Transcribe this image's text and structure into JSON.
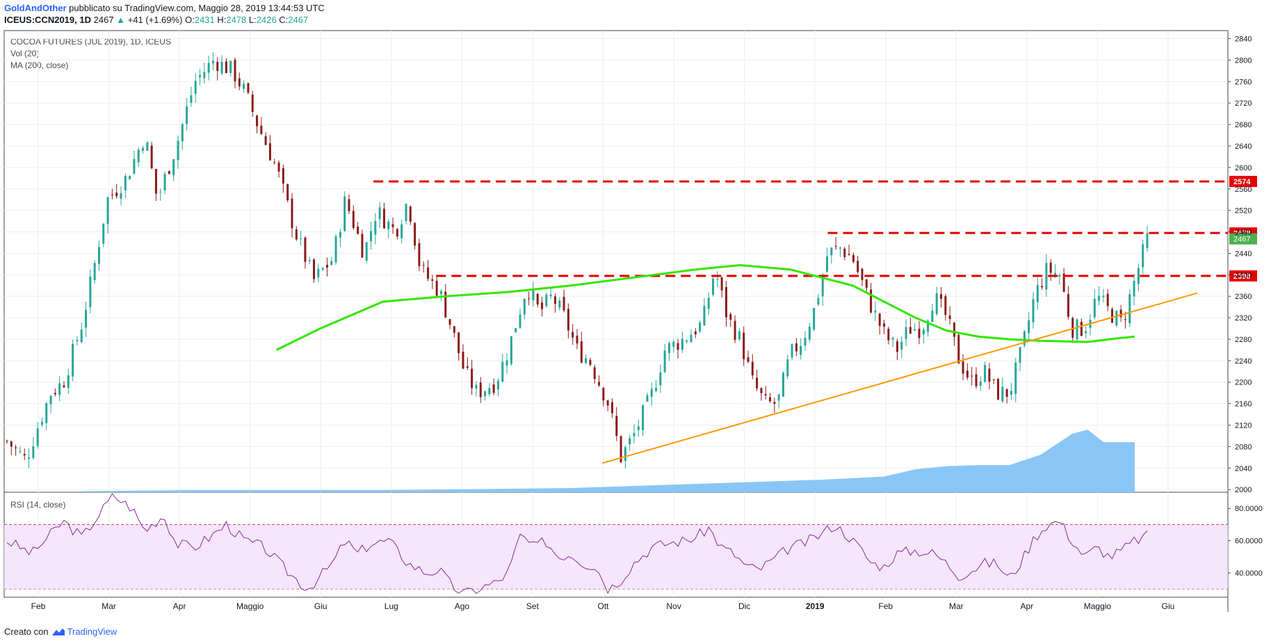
{
  "header": {
    "author": "GoldAndOther",
    "published_text": "pubblicato su TradingView.com, Maggio 28, 2019 13:44:53 UTC",
    "symbol": "ICEUS:CCN2019, 1D",
    "last": "2467",
    "change": "+41 (+1.69%)",
    "o_label": "O:",
    "o": "2431",
    "h_label": "H:",
    "h": "2478",
    "l_label": "L:",
    "l": "2426",
    "c_label": "C:",
    "c": "2467"
  },
  "legend": {
    "title": "COCOA FUTURES (JUL 2019), 1D, ICEUS",
    "vol": "Vol (20)",
    "ma": "MA (200, close)",
    "rsi": "RSI (14, close)"
  },
  "footer": {
    "created_with": "Creato con",
    "brand": "TradingView"
  },
  "colors": {
    "up": "#26a69a",
    "down": "#8b1a1a",
    "ma": "#33e600",
    "trend": "#ff9800",
    "level": "#e60000",
    "volume": "#8ac6f5",
    "rsi": "#8a2a9a"
  },
  "chart_data": [
    {
      "type": "candlestick",
      "title": "COCOA FUTURES (JUL 2019), 1D, ICEUS",
      "x_ticks": [
        "Feb",
        "Mar",
        "Apr",
        "Maggio",
        "Giu",
        "Lug",
        "Ago",
        "Set",
        "Ott",
        "Nov",
        "Dic",
        "2019",
        "Feb",
        "Mar",
        "Apr",
        "Maggio",
        "Giu"
      ],
      "y_ticks": [
        2000,
        2040,
        2080,
        2120,
        2160,
        2200,
        2240,
        2280,
        2320,
        2360,
        2400,
        2440,
        2480,
        2520,
        2560,
        2600,
        2640,
        2680,
        2720,
        2760,
        2800,
        2840
      ],
      "ylim": [
        1995,
        2855
      ],
      "price_path": [
        [
          0,
          2090
        ],
        [
          6,
          2055
        ],
        [
          10,
          2120
        ],
        [
          14,
          2180
        ],
        [
          18,
          2200
        ],
        [
          24,
          2310
        ],
        [
          28,
          2420
        ],
        [
          32,
          2540
        ],
        [
          38,
          2580
        ],
        [
          44,
          2660
        ],
        [
          48,
          2540
        ],
        [
          54,
          2640
        ],
        [
          60,
          2760
        ],
        [
          66,
          2800
        ],
        [
          72,
          2780
        ],
        [
          76,
          2740
        ],
        [
          80,
          2680
        ],
        [
          86,
          2600
        ],
        [
          92,
          2480
        ],
        [
          98,
          2390
        ],
        [
          104,
          2430
        ],
        [
          108,
          2540
        ],
        [
          114,
          2440
        ],
        [
          118,
          2520
        ],
        [
          124,
          2480
        ],
        [
          128,
          2540
        ],
        [
          132,
          2410
        ],
        [
          138,
          2370
        ],
        [
          142,
          2300
        ],
        [
          146,
          2220
        ],
        [
          150,
          2180
        ],
        [
          156,
          2200
        ],
        [
          160,
          2260
        ],
        [
          166,
          2380
        ],
        [
          170,
          2330
        ],
        [
          174,
          2360
        ],
        [
          178,
          2320
        ],
        [
          182,
          2260
        ],
        [
          186,
          2240
        ],
        [
          192,
          2160
        ],
        [
          196,
          2060
        ],
        [
          200,
          2100
        ],
        [
          206,
          2180
        ],
        [
          210,
          2260
        ],
        [
          216,
          2280
        ],
        [
          222,
          2310
        ],
        [
          226,
          2410
        ],
        [
          230,
          2320
        ],
        [
          234,
          2280
        ],
        [
          238,
          2200
        ],
        [
          242,
          2160
        ],
        [
          246,
          2160
        ],
        [
          250,
          2250
        ],
        [
          254,
          2280
        ],
        [
          258,
          2340
        ],
        [
          262,
          2440
        ],
        [
          266,
          2450
        ],
        [
          270,
          2430
        ],
        [
          276,
          2340
        ],
        [
          280,
          2290
        ],
        [
          284,
          2260
        ],
        [
          288,
          2300
        ],
        [
          292,
          2300
        ],
        [
          296,
          2360
        ],
        [
          300,
          2320
        ],
        [
          304,
          2240
        ],
        [
          308,
          2200
        ],
        [
          312,
          2220
        ],
        [
          316,
          2180
        ],
        [
          320,
          2180
        ],
        [
          324,
          2260
        ],
        [
          328,
          2360
        ],
        [
          332,
          2410
        ],
        [
          336,
          2400
        ],
        [
          340,
          2300
        ],
        [
          344,
          2300
        ],
        [
          348,
          2360
        ],
        [
          352,
          2330
        ],
        [
          356,
          2310
        ],
        [
          360,
          2390
        ],
        [
          364,
          2467
        ]
      ],
      "levels": [
        2574,
        2478,
        2398
      ],
      "level_labels": [
        "2574",
        "2478",
        "2398"
      ],
      "last_label": "2467",
      "ma200": [
        [
          86,
          2260
        ],
        [
          100,
          2300
        ],
        [
          120,
          2350
        ],
        [
          140,
          2360
        ],
        [
          160,
          2368
        ],
        [
          180,
          2380
        ],
        [
          200,
          2395
        ],
        [
          220,
          2410
        ],
        [
          234,
          2418
        ],
        [
          250,
          2410
        ],
        [
          260,
          2395
        ],
        [
          270,
          2380
        ],
        [
          280,
          2350
        ],
        [
          290,
          2320
        ],
        [
          300,
          2296
        ],
        [
          310,
          2285
        ],
        [
          320,
          2280
        ],
        [
          330,
          2277
        ],
        [
          345,
          2275
        ],
        [
          355,
          2282
        ],
        [
          360,
          2285
        ]
      ],
      "trendline": [
        [
          190,
          2049
        ],
        [
          380,
          2366
        ]
      ],
      "volume": [
        [
          24,
          0.01
        ],
        [
          60,
          0.02
        ],
        [
          120,
          0.02
        ],
        [
          180,
          0.04
        ],
        [
          220,
          0.08
        ],
        [
          260,
          0.12
        ],
        [
          280,
          0.15
        ],
        [
          290,
          0.22
        ],
        [
          300,
          0.25
        ],
        [
          310,
          0.26
        ],
        [
          320,
          0.26
        ],
        [
          330,
          0.36
        ],
        [
          340,
          0.56
        ],
        [
          345,
          0.6
        ],
        [
          350,
          0.48
        ],
        [
          360,
          0.48
        ]
      ]
    },
    {
      "type": "line",
      "title": "RSI (14, close)",
      "y_ticks": [
        "80.0000",
        "60.0000",
        "40.0000"
      ],
      "ylim": [
        25,
        90
      ],
      "overbought": 70,
      "oversold": 30,
      "values": [
        [
          0,
          60
        ],
        [
          8,
          52
        ],
        [
          14,
          64
        ],
        [
          18,
          72
        ],
        [
          24,
          62
        ],
        [
          30,
          78
        ],
        [
          34,
          88
        ],
        [
          40,
          80
        ],
        [
          44,
          66
        ],
        [
          50,
          76
        ],
        [
          54,
          58
        ],
        [
          60,
          56
        ],
        [
          66,
          64
        ],
        [
          70,
          70
        ],
        [
          76,
          60
        ],
        [
          82,
          56
        ],
        [
          90,
          40
        ],
        [
          96,
          30
        ],
        [
          100,
          38
        ],
        [
          104,
          46
        ],
        [
          108,
          60
        ],
        [
          112,
          52
        ],
        [
          116,
          58
        ],
        [
          122,
          60
        ],
        [
          128,
          46
        ],
        [
          134,
          40
        ],
        [
          138,
          42
        ],
        [
          142,
          32
        ],
        [
          146,
          27
        ],
        [
          150,
          30
        ],
        [
          156,
          34
        ],
        [
          160,
          40
        ],
        [
          164,
          64
        ],
        [
          168,
          56
        ],
        [
          172,
          60
        ],
        [
          176,
          50
        ],
        [
          180,
          52
        ],
        [
          184,
          46
        ],
        [
          188,
          44
        ],
        [
          192,
          30
        ],
        [
          196,
          36
        ],
        [
          200,
          46
        ],
        [
          206,
          56
        ],
        [
          210,
          58
        ],
        [
          216,
          60
        ],
        [
          220,
          62
        ],
        [
          224,
          68
        ],
        [
          228,
          56
        ],
        [
          232,
          52
        ],
        [
          236,
          44
        ],
        [
          240,
          42
        ],
        [
          246,
          50
        ],
        [
          250,
          56
        ],
        [
          254,
          58
        ],
        [
          260,
          64
        ],
        [
          264,
          70
        ],
        [
          268,
          64
        ],
        [
          272,
          56
        ],
        [
          276,
          46
        ],
        [
          280,
          44
        ],
        [
          284,
          52
        ],
        [
          290,
          54
        ],
        [
          296,
          52
        ],
        [
          300,
          46
        ],
        [
          304,
          38
        ],
        [
          308,
          42
        ],
        [
          312,
          46
        ],
        [
          316,
          46
        ],
        [
          320,
          36
        ],
        [
          324,
          48
        ],
        [
          328,
          62
        ],
        [
          332,
          70
        ],
        [
          336,
          72
        ],
        [
          340,
          60
        ],
        [
          344,
          50
        ],
        [
          348,
          56
        ],
        [
          352,
          50
        ],
        [
          356,
          54
        ],
        [
          360,
          60
        ],
        [
          364,
          63
        ]
      ]
    }
  ]
}
